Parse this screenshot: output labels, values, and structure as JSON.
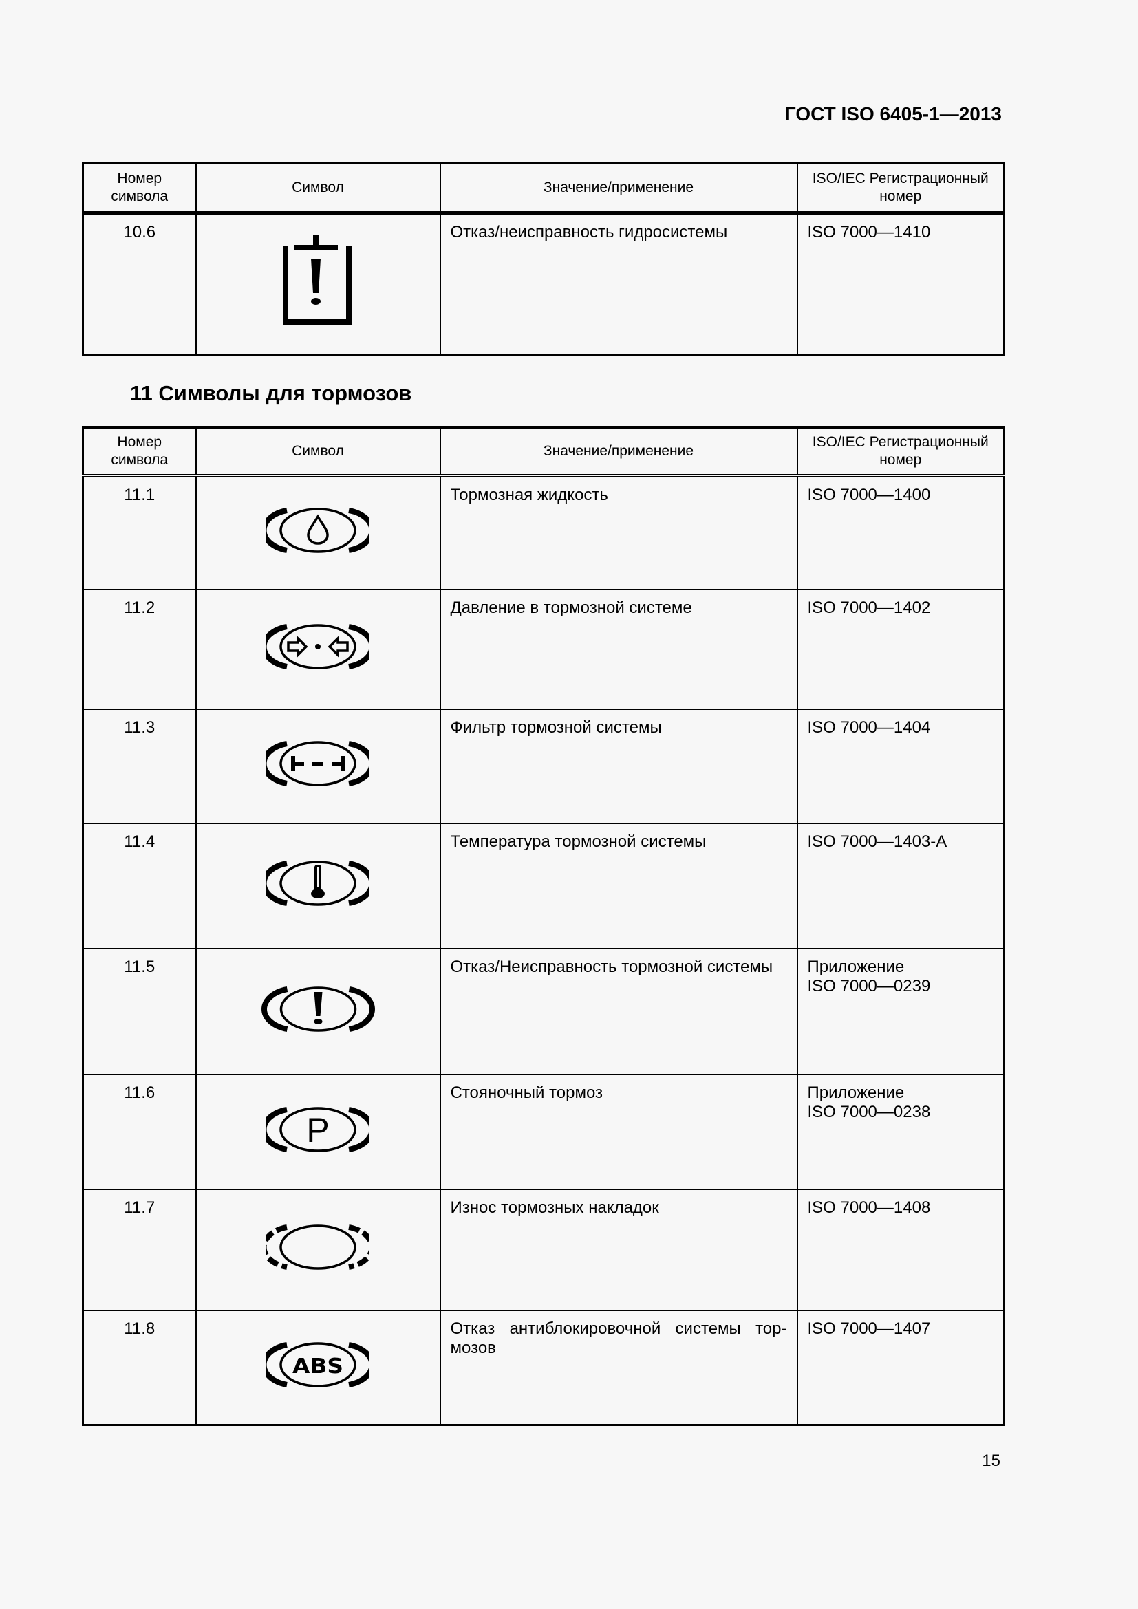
{
  "header": {
    "doc_code": "ГОСТ ISO 6405-1—2013"
  },
  "columns": [
    "Номер символа",
    "Символ",
    "Значение/применение",
    "ISO/IEC Регистрационный номер"
  ],
  "table1": {
    "rows": [
      {
        "num": "10.6",
        "icon": "hydraulic-failure-icon",
        "desc": "Отказ/неисправность гидросистемы",
        "reg": "ISO 7000—1410",
        "reg2": ""
      }
    ]
  },
  "section": {
    "title": "11 Символы для тормозов"
  },
  "table2": {
    "rows": [
      {
        "num": "11.1",
        "icon": "brake-fluid-icon",
        "desc": "Тормозная жидкость",
        "reg": "ISO 7000—1400",
        "reg2": ""
      },
      {
        "num": "11.2",
        "icon": "brake-pressure-icon",
        "desc": "Давление в тормозной системе",
        "reg": "ISO 7000—1402",
        "reg2": ""
      },
      {
        "num": "11.3",
        "icon": "brake-filter-icon",
        "desc": "Фильтр тормозной системы",
        "reg": "ISO 7000—1404",
        "reg2": ""
      },
      {
        "num": "11.4",
        "icon": "brake-temperature-icon",
        "desc": "Температура тормозной системы",
        "reg": "ISO 7000—1403-А",
        "reg2": ""
      },
      {
        "num": "11.5",
        "icon": "brake-failure-icon",
        "desc": "Отказ/Неисправность тормозной системы",
        "reg": "Приложение",
        "reg2": "ISO 7000—0239"
      },
      {
        "num": "11.6",
        "icon": "parking-brake-icon",
        "desc": "Стояночный тормоз",
        "reg": "Приложение",
        "reg2": "ISO 7000—0238"
      },
      {
        "num": "11.7",
        "icon": "brake-lining-wear-icon",
        "desc": "Износ тормозных накладок",
        "reg": "ISO 7000—1408",
        "reg2": ""
      },
      {
        "num": "11.8",
        "icon": "abs-failure-icon",
        "desc": "Отказ антиблокировочной системы тор-",
        "desc2": "мозов",
        "reg": "ISO 7000—1407",
        "reg2": ""
      }
    ]
  },
  "footer": {
    "page_number": "15"
  }
}
